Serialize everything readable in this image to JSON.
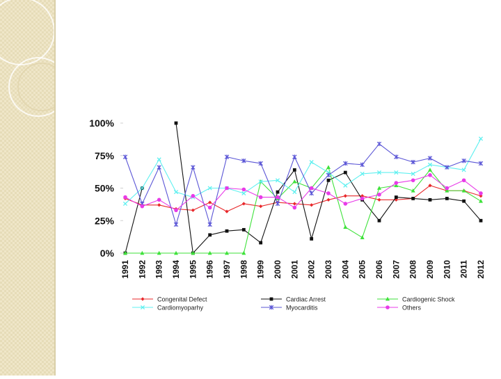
{
  "chart_data": {
    "type": "line",
    "title": "",
    "xlabel": "",
    "ylabel": "",
    "ylim": [
      0,
      100
    ],
    "yticks": [
      "0%",
      "25%",
      "50%",
      "75%",
      "100%"
    ],
    "ytick_values": [
      0,
      25,
      50,
      75,
      100
    ],
    "x": [
      "1991",
      "1992",
      "1993",
      "1994",
      "1995",
      "1996",
      "1997",
      "1998",
      "1999",
      "2000",
      "2001",
      "2002",
      "2003",
      "2004",
      "2005",
      "2006",
      "2007",
      "2008",
      "2009",
      "2010",
      "2011",
      "2012"
    ],
    "legend_position": "bottom",
    "series": [
      {
        "name": "Congenital Defect",
        "color": "#e8272a",
        "marker": "diamond",
        "values": [
          42,
          37,
          37,
          34,
          33,
          39,
          32,
          38,
          36,
          39,
          38,
          37,
          41,
          44,
          44,
          41,
          41,
          42,
          52,
          48,
          48,
          44
        ]
      },
      {
        "name": "Cardiac Arrest",
        "color": "#111111",
        "marker": "square",
        "values": [
          0,
          50,
          null,
          100,
          0,
          14,
          17,
          18,
          8,
          47,
          64,
          11,
          56,
          62,
          41,
          25,
          43,
          42,
          41,
          42,
          40,
          25
        ]
      },
      {
        "name": "Cardiogenic Shock",
        "color": "#3ee23a",
        "marker": "triangle",
        "values": [
          0,
          0,
          0,
          0,
          0,
          0,
          0,
          0,
          55,
          42,
          55,
          50,
          66,
          20,
          12,
          50,
          52,
          48,
          64,
          48,
          48,
          40
        ]
      },
      {
        "name": "Cardiomyoparhy",
        "color": "#5ff0f0",
        "marker": "x",
        "values": [
          38,
          50,
          72,
          47,
          43,
          50,
          50,
          46,
          55,
          56,
          47,
          70,
          62,
          52,
          61,
          62,
          62,
          61,
          68,
          66,
          64,
          88
        ]
      },
      {
        "name": "Myocarditis",
        "color": "#5a55d6",
        "marker": "star",
        "values": [
          74,
          38,
          66,
          22,
          66,
          22,
          74,
          71,
          69,
          38,
          74,
          46,
          60,
          69,
          68,
          84,
          74,
          70,
          73,
          66,
          71,
          69
        ]
      },
      {
        "name": "Others",
        "color": "#e83be8",
        "marker": "circle",
        "values": [
          43,
          36,
          41,
          33,
          44,
          35,
          50,
          49,
          43,
          43,
          35,
          50,
          46,
          38,
          42,
          45,
          54,
          56,
          60,
          50,
          56,
          46
        ]
      }
    ]
  }
}
